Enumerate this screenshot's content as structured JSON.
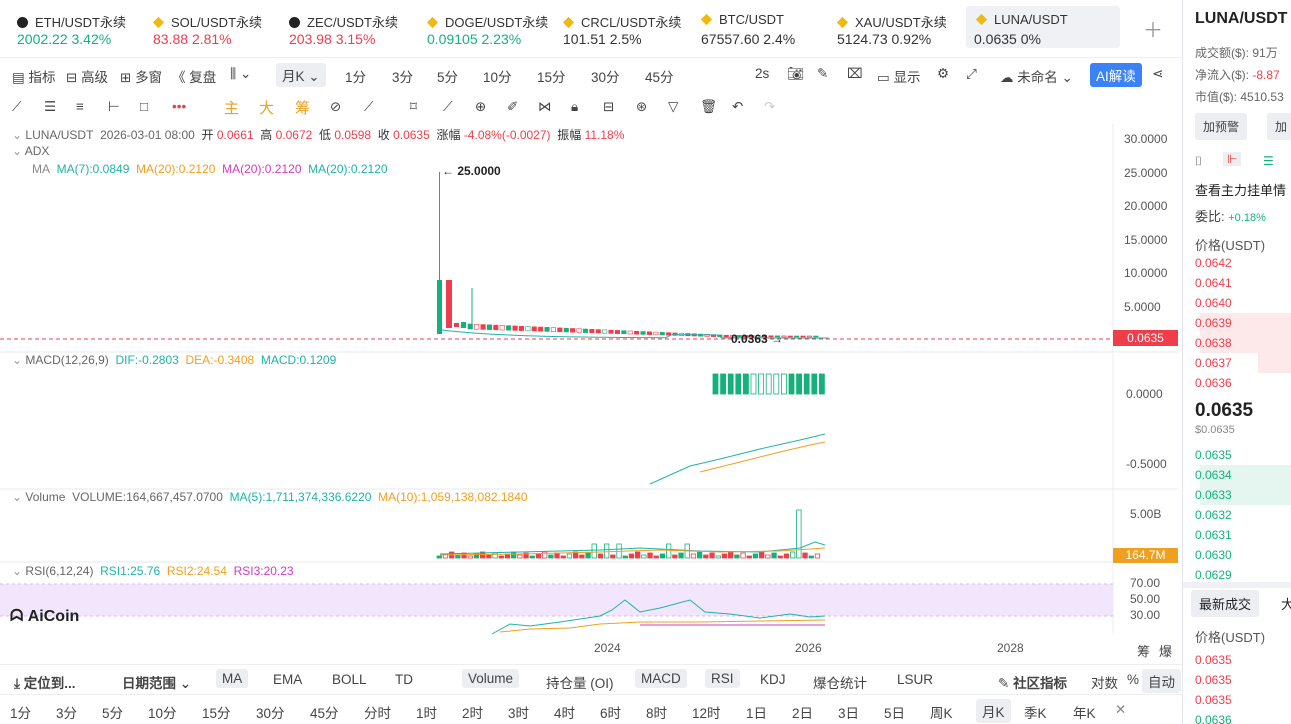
{
  "tickers": [
    {
      "name": "ETH/USDT永续",
      "price": "2002.22",
      "change": "3.42%",
      "dir": "up",
      "icon": "eth-icon"
    },
    {
      "name": "SOL/USDT永续",
      "price": "83.88",
      "change": "2.81%",
      "dir": "dn",
      "icon": "sol-icon"
    },
    {
      "name": "ZEC/USDT永续",
      "price": "203.98",
      "change": "3.15%",
      "dir": "dn",
      "icon": "zec-icon"
    },
    {
      "name": "DOGE/USDT永续",
      "price": "0.09105",
      "change": "2.23%",
      "dir": "up",
      "icon": "doge-icon"
    },
    {
      "name": "CRCL/USDT永续",
      "price": "101.51",
      "change": "2.5%",
      "dir": "neu",
      "icon": "crcl-icon"
    },
    {
      "name": "BTC/USDT",
      "price": "67557.60",
      "change": "2.4%",
      "dir": "neu",
      "icon": "btc-icon"
    },
    {
      "name": "XAU/USDT永续",
      "price": "5124.73",
      "change": "0.92%",
      "dir": "neu",
      "icon": "xau-icon"
    },
    {
      "name": "LUNA/USDT",
      "price": "0.0635",
      "change": "0%",
      "dir": "neu",
      "icon": "luna-icon"
    }
  ],
  "toolbar": {
    "indicator": "指标",
    "advanced": "高级",
    "multi": "多窗",
    "replay": "复盘",
    "timeframe": "月K",
    "intervals": [
      "1分",
      "3分",
      "5分",
      "10分",
      "15分",
      "30分",
      "45分"
    ],
    "refresh": "2s",
    "display": "显示",
    "unnamed": "未命名",
    "ai": "AI解读"
  },
  "drawing": {
    "main": "主",
    "big": "大",
    "chip": "筹"
  },
  "chart": {
    "symbol": "LUNA/USDT",
    "date": "2026-03-01 08:00",
    "open_l": "开",
    "open": "0.0661",
    "high_l": "高",
    "high": "0.0672",
    "low_l": "低",
    "low": "0.0598",
    "close_l": "收",
    "close": "0.0635",
    "chg_l": "涨幅",
    "chg": "-4.08%(-0.0027)",
    "amp_l": "振幅",
    "amp": "11.18%",
    "adx": "ADX",
    "ma": {
      "label": "MA",
      "ma7": "MA(7):0.0849",
      "ma20a": "MA(20):0.2120",
      "ma20b": "MA(20):0.2120",
      "ma20c": "MA(20):0.2120"
    },
    "peak_label": "← 25.0000",
    "low_label": "0.0363 →",
    "price_ticks": [
      "30.0000",
      "25.0000",
      "20.0000",
      "15.0000",
      "10.0000",
      "5.0000"
    ],
    "last_price": "0.0635",
    "macd": {
      "label": "MACD(12,26,9)",
      "dif": "DIF:-0.2803",
      "dea": "DEA:-0.3408",
      "macd": "MACD:0.1209",
      "ticks": [
        "0.0000",
        "-0.5000"
      ]
    },
    "volume": {
      "label": "Volume",
      "vol": "VOLUME:164,667,457.0700",
      "ma5": "MA(5):1,711,374,336.6220",
      "ma10": "MA(10):1,059,138,082.1840",
      "ticks": [
        "5.00B"
      ],
      "last": "164.7M"
    },
    "rsi": {
      "label": "RSI(6,12,24)",
      "r1": "RSI1:25.76",
      "r2": "RSI2:24.54",
      "r3": "RSI3:20.23",
      "ticks": [
        "70.00",
        "50.00",
        "30.00"
      ]
    },
    "x_ticks": [
      "2024",
      "2026",
      "2028"
    ],
    "logo": "AiCoin",
    "corner1": "筹",
    "corner2": "爆"
  },
  "bottom1": {
    "locate": "定位到...",
    "range": "日期范围",
    "items": [
      "MA",
      "EMA",
      "BOLL",
      "TD",
      "Volume",
      "持仓量 (OI)",
      "MACD",
      "RSI",
      "KDJ",
      "爆仓统计",
      "LSUR"
    ],
    "community": "社区指标",
    "log": "对数",
    "pct": "%",
    "auto": "自动"
  },
  "bottom2": [
    "1分",
    "3分",
    "5分",
    "10分",
    "15分",
    "30分",
    "45分",
    "分时",
    "1时",
    "2时",
    "3时",
    "4时",
    "6时",
    "8时",
    "12时",
    "1日",
    "2日",
    "3日",
    "5日",
    "周K",
    "月K",
    "季K",
    "年K"
  ],
  "side": {
    "title": "LUNA/USDT",
    "turnover": "成交额($):",
    "turnover_v": "91万",
    "inflow": "净流入($):",
    "inflow_v": "-8.87",
    "mcap": "市值($):",
    "mcap_v": "4510.53",
    "alert": "加预警",
    "add": "加",
    "mainorder": "查看主力挂单情",
    "ratio_l": "委比:",
    "ratio_v": "+0.18%",
    "price_h": "价格(USDT)",
    "asks": [
      {
        "p": "0.0642",
        "w": 0
      },
      {
        "p": "0.0641",
        "w": 0
      },
      {
        "p": "0.0640",
        "w": 0
      },
      {
        "p": "0.0639",
        "w": 95
      },
      {
        "p": "0.0638",
        "w": 95
      },
      {
        "p": "0.0637",
        "w": 35
      },
      {
        "p": "0.0636",
        "w": 0
      }
    ],
    "last": "0.0635",
    "last_usd": "$0.0635",
    "bids": [
      {
        "p": "0.0635",
        "w": 0
      },
      {
        "p": "0.0634",
        "w": 95
      },
      {
        "p": "0.0633",
        "w": 95
      },
      {
        "p": "0.0632",
        "w": 0
      },
      {
        "p": "0.0631",
        "w": 0
      },
      {
        "p": "0.0630",
        "w": 0
      },
      {
        "p": "0.0629",
        "w": 0
      }
    ],
    "trades_tab": "最新成交",
    "big_tab": "大",
    "trades_h": "价格(USDT)",
    "trades": [
      {
        "p": "0.0635",
        "dir": "dn"
      },
      {
        "p": "0.0635",
        "dir": "dn"
      },
      {
        "p": "0.0635",
        "dir": "dn"
      },
      {
        "p": "0.0636",
        "dir": "up"
      }
    ]
  },
  "colors": {
    "up": "#14b17a",
    "down": "#f03d4b",
    "accent": "#3b82f6"
  }
}
